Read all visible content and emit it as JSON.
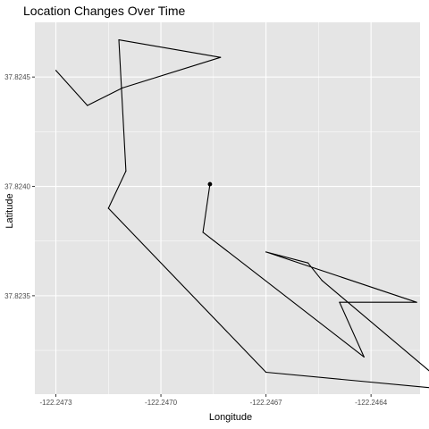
{
  "chart_data": {
    "type": "line",
    "title": "Location Changes Over Time",
    "xlabel": "Longitude",
    "ylabel": "Latitude",
    "xlim": [
      -122.24736,
      -122.24626
    ],
    "ylim": [
      37.82305,
      37.82475
    ],
    "x_ticks": [
      -122.2473,
      -122.247,
      -122.2467,
      -122.2464
    ],
    "x_tick_labels": [
      "-122.2473",
      "-122.2470",
      "-122.2467",
      "-122.2464"
    ],
    "y_ticks": [
      37.8235,
      37.824,
      37.8245
    ],
    "y_tick_labels": [
      "37.8235",
      "37.8240",
      "37.8245"
    ],
    "grid": true,
    "legend": "none",
    "colors": {
      "panel": "#e5e5e5",
      "grid": "#ffffff",
      "line": "#000000"
    },
    "series": [
      {
        "x": [
          -122.2473,
          -122.24721,
          -122.24711,
          -122.24683,
          -122.24712,
          -122.2471,
          -122.24715,
          -122.2467,
          -122.24617,
          -122.24654,
          -122.24658,
          -122.2467,
          -122.24627,
          -122.24649,
          -122.24642,
          -122.24688,
          -122.24686
        ],
        "y": [
          37.82453,
          37.82437,
          37.82445,
          37.82459,
          37.82467,
          37.82407,
          37.8239,
          37.82315,
          37.82307,
          37.82357,
          37.82365,
          37.8237,
          37.82347,
          37.82347,
          37.82322,
          37.82379,
          37.82401
        ],
        "end_marker": true
      }
    ]
  }
}
